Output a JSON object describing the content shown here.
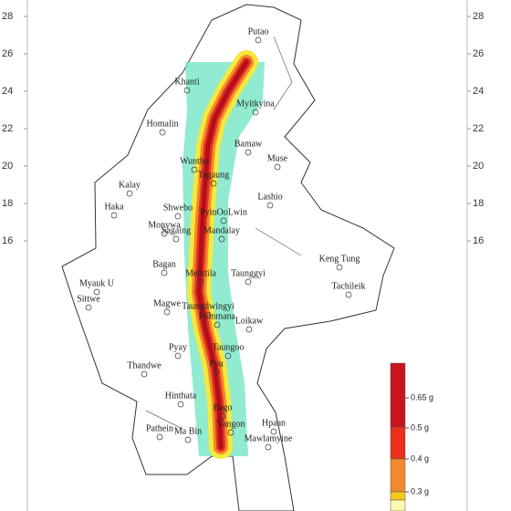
{
  "lat_ticks": [
    28,
    26,
    24,
    22,
    20,
    18,
    16
  ],
  "cities": [
    "Putao",
    "Khanti",
    "Myitkyina",
    "Homalin",
    "Bamaw",
    "Wuntho",
    "Muse",
    "Tagaung",
    "Kalay",
    "Lashio",
    "Haka",
    "Shwebo",
    "PyinOoLwin",
    "Monywa",
    "Sagaing",
    "Mandalay",
    "Bagan",
    "Keng Tung",
    "Meiktila",
    "Taunggyi",
    "Myauk U",
    "Tachileik",
    "Sittwe",
    "Magwe",
    "Taungdwingyi",
    "Pyinmana",
    "Loikaw",
    "Pyay",
    "Taungoo",
    "Thandwe",
    "Pyu",
    "Hinthata",
    "Bago",
    "Yangon",
    "Hpaan",
    "Pathein",
    "Ma Bin",
    "Mawlamyine"
  ],
  "legend": {
    "colors": [
      "#c8141c",
      "#e8301c",
      "#f08a2c",
      "#f6c81c",
      "#fff8b0"
    ],
    "labels": [
      "0.65 g",
      "0.5 g",
      "0.4 g",
      "0.3 g"
    ]
  }
}
